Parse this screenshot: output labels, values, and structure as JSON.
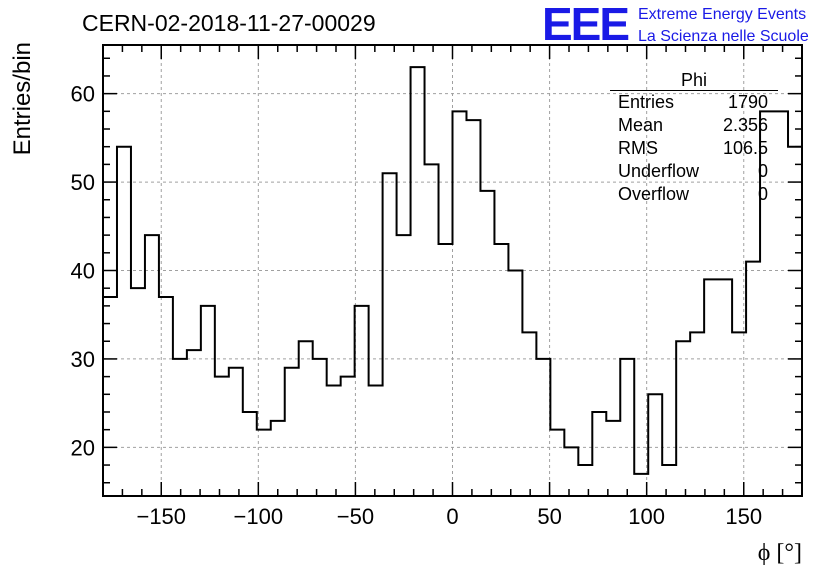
{
  "header": {
    "run_title": "CERN-02-2018-11-27-00029"
  },
  "logo": {
    "mark": "EEE",
    "line1": "Extreme Energy Events",
    "line2": "La Scienza nelle Scuole"
  },
  "stats_box": {
    "title": "Phi",
    "rows": [
      {
        "label": "Entries",
        "value": "1790"
      },
      {
        "label": "Mean",
        "value": "2.356"
      },
      {
        "label": "RMS",
        "value": "106.5"
      },
      {
        "label": "Underflow",
        "value": "0"
      },
      {
        "label": "Overflow",
        "value": "0"
      }
    ]
  },
  "colors": {
    "line": "#000000",
    "grid": "#a0a0a0",
    "logo": "#1a1ae6"
  },
  "chart_data": {
    "type": "histogram",
    "title": "CERN-02-2018-11-27-00029",
    "xlabel": "ϕ [°]",
    "ylabel": "Entries/bin",
    "xlim": [
      -180,
      180
    ],
    "ylim": [
      14.5,
      65.5
    ],
    "bin_width": 7.2,
    "bin_edges_start": -180,
    "values": [
      37,
      54,
      38,
      44,
      37,
      30,
      31,
      36,
      28,
      29,
      24,
      22,
      23,
      29,
      32,
      30,
      27,
      28,
      36,
      27,
      51,
      44,
      63,
      52,
      43,
      58,
      57,
      49,
      43,
      40,
      33,
      30,
      22,
      20,
      18,
      24,
      23,
      30,
      17,
      26,
      18,
      32,
      33,
      39,
      39,
      33,
      41,
      58,
      58,
      54
    ],
    "x_ticks": [
      -150,
      -100,
      -50,
      0,
      50,
      100,
      150
    ],
    "x_tick_labels": [
      "−150",
      "−100",
      "−50",
      "0",
      "50",
      "100",
      "150"
    ],
    "y_ticks": [
      20,
      30,
      40,
      50,
      60
    ],
    "y_tick_labels": [
      "20",
      "30",
      "40",
      "50",
      "60"
    ],
    "grid": true,
    "legend": "none"
  }
}
